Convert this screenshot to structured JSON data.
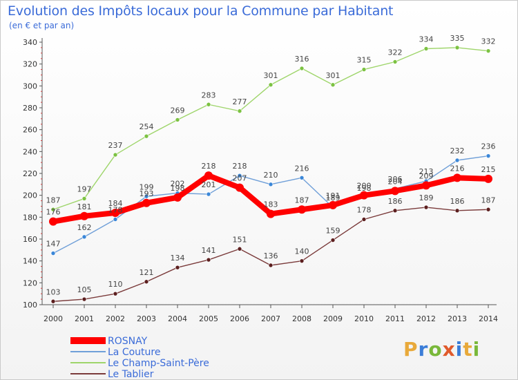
{
  "title": "Evolution des Impôts locaux pour la Commune par Habitant",
  "subtitle": "(en € et par an)",
  "logo": {
    "letters": [
      "P",
      "r",
      "o",
      "x",
      "i",
      "t",
      "i"
    ],
    "colors": [
      "#e8a93a",
      "#3b7dd8",
      "#79b83a",
      "#e05a2b",
      "#3b7dd8",
      "#e8a93a",
      "#79b83a"
    ]
  },
  "chart_data": {
    "type": "line",
    "title": "Evolution des Impôts locaux pour la Commune par Habitant",
    "subtitle": "(en € et par an)",
    "x": [
      2000,
      2001,
      2002,
      2003,
      2004,
      2005,
      2006,
      2007,
      2008,
      2009,
      2010,
      2011,
      2012,
      2013,
      2014
    ],
    "ylim": [
      100,
      340
    ],
    "yticks": [
      100,
      120,
      140,
      160,
      180,
      200,
      220,
      240,
      260,
      280,
      300,
      320,
      340
    ],
    "grid": false,
    "legend_position": "bottom-left",
    "series": [
      {
        "name": "ROSNAY",
        "color": "#ff0000",
        "marker": "#ff0000",
        "values": [
          176,
          181,
          184,
          193,
          198,
          218,
          207,
          183,
          187,
          191,
          200,
          204,
          209,
          216,
          215
        ]
      },
      {
        "name": "La Couture",
        "color": "#6f9fd8",
        "marker": "#3b87d8",
        "values": [
          147,
          162,
          178,
          199,
          202,
          201,
          218,
          210,
          216,
          189,
          198,
          206,
          213,
          232,
          236
        ]
      },
      {
        "name": "Le Champ-Saint-Père",
        "color": "#9ed56a",
        "marker": "#7cc242",
        "values": [
          187,
          197,
          237,
          254,
          269,
          283,
          277,
          301,
          316,
          301,
          315,
          322,
          334,
          335,
          332
        ]
      },
      {
        "name": "Le Tablier",
        "color": "#7a3a3a",
        "marker": "#5c1f1f",
        "values": [
          103,
          105,
          110,
          121,
          134,
          141,
          151,
          136,
          140,
          159,
          178,
          186,
          189,
          186,
          187
        ]
      }
    ]
  }
}
